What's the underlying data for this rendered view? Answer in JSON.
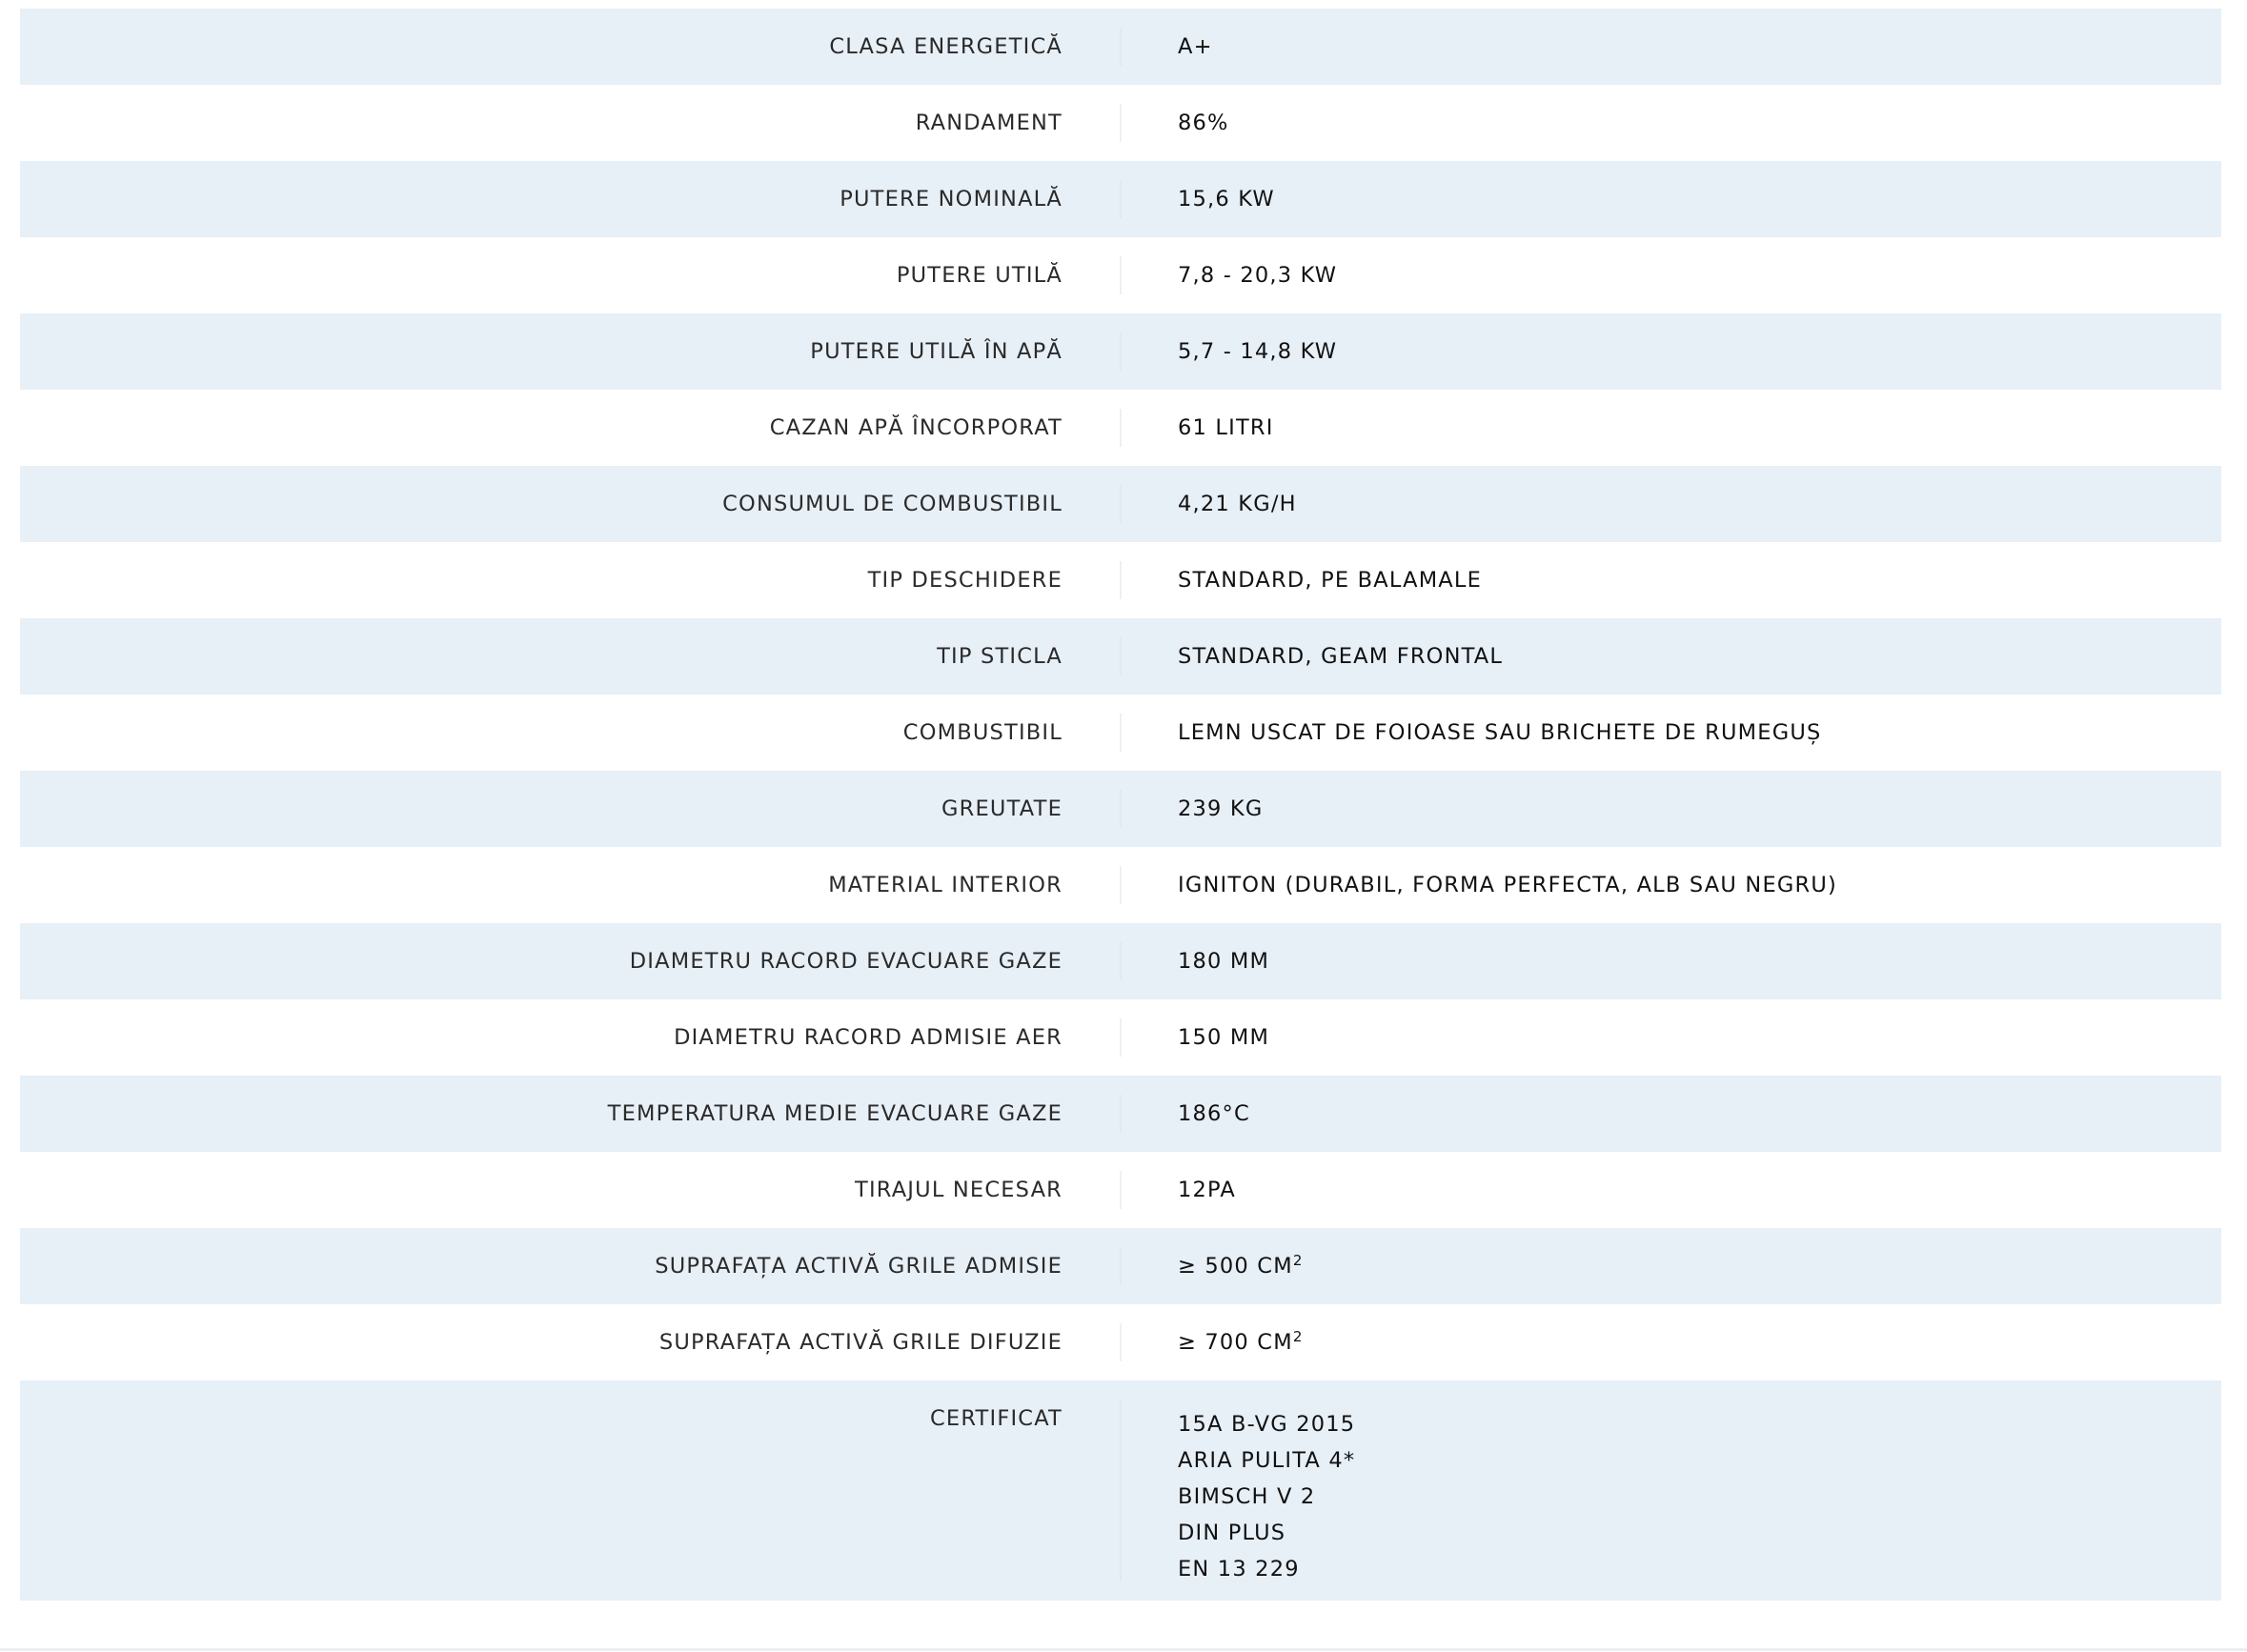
{
  "specs": [
    {
      "label": "CLASA ENERGETICĂ",
      "value": "A+"
    },
    {
      "label": "RANDAMENT",
      "value": "86%"
    },
    {
      "label": "PUTERE NOMINALĂ",
      "value": "15,6 KW"
    },
    {
      "label": "PUTERE UTILĂ",
      "value": "7,8 - 20,3 KW"
    },
    {
      "label": "PUTERE UTILĂ ÎN APĂ",
      "value": "5,7 - 14,8 KW"
    },
    {
      "label": "CAZAN APĂ ÎNCORPORAT",
      "value": "61 LITRI"
    },
    {
      "label": "CONSUMUL DE COMBUSTIBIL",
      "value": "4,21 KG/H"
    },
    {
      "label": "TIP DESCHIDERE",
      "value": "STANDARD, PE BALAMALE"
    },
    {
      "label": "TIP STICLA",
      "value": "STANDARD, GEAM FRONTAL"
    },
    {
      "label": "COMBUSTIBIL",
      "value": "LEMN USCAT DE FOIOASE SAU BRICHETE DE RUMEGUȘ"
    },
    {
      "label": "GREUTATE",
      "value": "239 KG"
    },
    {
      "label": "MATERIAL INTERIOR",
      "value": "IGNITON (DURABIL, FORMA PERFECTA, ALB SAU NEGRU)"
    },
    {
      "label": "DIAMETRU RACORD EVACUARE GAZE",
      "value": "180 MM"
    },
    {
      "label": "DIAMETRU RACORD ADMISIE AER",
      "value": "150 MM"
    },
    {
      "label": "TEMPERATURA MEDIE EVACUARE GAZE",
      "value": "186°C"
    },
    {
      "label": "TIRAJUL NECESAR",
      "value": "12PA"
    },
    {
      "label": "SUPRAFAȚA ACTIVĂ GRILE ADMISIE",
      "value": "≥ 500 CM",
      "sup": "2"
    },
    {
      "label": "SUPRAFAȚA ACTIVĂ GRILE DIFUZIE",
      "value": "≥ 700 CM",
      "sup": "2"
    }
  ],
  "certificat": {
    "label": "CERTIFICAT",
    "values": [
      "15A B-VG 2015",
      "ARIA PULITA 4*",
      "BIMSCH V 2",
      "DIN PLUS",
      "EN 13 229"
    ]
  },
  "colors": {
    "row_alt_bg": "#e7eff7",
    "text": "#111111"
  }
}
